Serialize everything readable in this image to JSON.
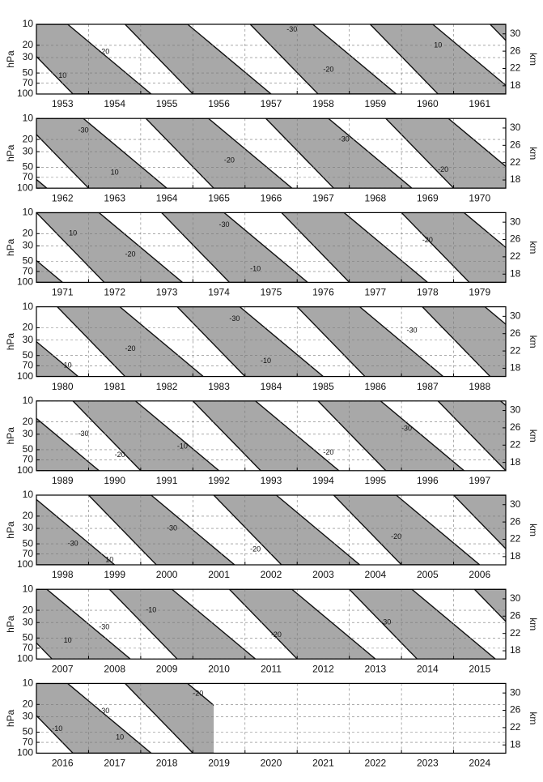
{
  "chart_data": [
    {
      "type": "contour",
      "ylabel": "hPa",
      "y2label": "km",
      "log": true,
      "grid": true,
      "color": "#a8a8a8",
      "xlim": [
        1953,
        1962
      ],
      "categories": [
        "1953",
        "1954",
        "1955",
        "1956",
        "1957",
        "1958",
        "1959",
        "1960",
        "1961"
      ],
      "ylim": [
        100,
        10
      ],
      "yticks": [
        10,
        20,
        30,
        50,
        70,
        100
      ],
      "y2lim": [
        16.1,
        32.2
      ],
      "y2ticks": [
        30,
        26,
        22,
        18
      ],
      "westerly": [
        [
          1952.4,
          1953.6,
          1953.7,
          1955.2
        ],
        [
          1954.7,
          1955.9,
          1956.0,
          1957.5
        ],
        [
          1957.1,
          1958.3,
          1958.4,
          1959.9
        ],
        [
          1959.4,
          1960.6,
          1960.7,
          1962.2
        ],
        [
          1961.7,
          1962.9,
          1963.0,
          1964.5
        ]
      ],
      "contour_labels": [
        {
          "x": 1954.3,
          "y": 25,
          "text": -20
        },
        {
          "x": 1953.5,
          "y": 55,
          "text": 10
        },
        {
          "x": 1957.9,
          "y": 12,
          "text": -30
        },
        {
          "x": 1958.6,
          "y": 45,
          "text": -20
        },
        {
          "x": 1960.7,
          "y": 20,
          "text": 10
        }
      ]
    },
    {
      "type": "contour",
      "ylabel": "hPa",
      "y2label": "km",
      "log": true,
      "grid": true,
      "color": "#a8a8a8",
      "xlim": [
        1962,
        1971
      ],
      "categories": [
        "1962",
        "1963",
        "1964",
        "1965",
        "1966",
        "1967",
        "1968",
        "1969",
        "1970"
      ],
      "ylim": [
        100,
        10
      ],
      "yticks": [
        10,
        20,
        30,
        50,
        70,
        100
      ],
      "y2lim": [
        16.1,
        32.2
      ],
      "y2ticks": [
        30,
        26,
        22,
        18
      ],
      "westerly": [
        [
          1959.4,
          1960.6,
          1960.7,
          1962.2
        ],
        [
          1961.7,
          1962.9,
          1963.0,
          1964.5
        ],
        [
          1964.1,
          1965.3,
          1965.4,
          1966.9
        ],
        [
          1966.4,
          1967.6,
          1967.7,
          1969.2
        ],
        [
          1968.7,
          1969.9,
          1970.0,
          1971.5
        ]
      ],
      "contour_labels": [
        {
          "x": 1962.9,
          "y": 15,
          "text": -30
        },
        {
          "x": 1963.5,
          "y": 60,
          "text": 10
        },
        {
          "x": 1965.7,
          "y": 40,
          "text": -20
        },
        {
          "x": 1967.9,
          "y": 20,
          "text": -30
        },
        {
          "x": 1969.8,
          "y": 55,
          "text": -20
        }
      ]
    },
    {
      "type": "contour",
      "ylabel": "hPa",
      "y2label": "km",
      "log": true,
      "grid": true,
      "color": "#a8a8a8",
      "xlim": [
        1971,
        1980
      ],
      "categories": [
        "1971",
        "1972",
        "1973",
        "1974",
        "1975",
        "1976",
        "1977",
        "1978",
        "1979"
      ],
      "ylim": [
        100,
        10
      ],
      "yticks": [
        10,
        20,
        30,
        50,
        70,
        100
      ],
      "y2lim": [
        16.1,
        32.2
      ],
      "y2ticks": [
        30,
        26,
        22,
        18
      ],
      "westerly": [
        [
          1968.7,
          1969.9,
          1970.0,
          1971.5
        ],
        [
          1971.0,
          1972.2,
          1972.3,
          1973.8
        ],
        [
          1973.4,
          1974.6,
          1974.7,
          1976.2
        ],
        [
          1975.7,
          1976.9,
          1977.0,
          1978.5
        ],
        [
          1978.0,
          1979.2,
          1979.3,
          1980.8
        ]
      ],
      "contour_labels": [
        {
          "x": 1971.7,
          "y": 20,
          "text": 10
        },
        {
          "x": 1972.8,
          "y": 40,
          "text": -20
        },
        {
          "x": 1974.6,
          "y": 15,
          "text": -30
        },
        {
          "x": 1975.2,
          "y": 65,
          "text": -10
        },
        {
          "x": 1978.5,
          "y": 25,
          "text": -20
        }
      ]
    },
    {
      "type": "contour",
      "ylabel": "hPa",
      "y2label": "km",
      "log": true,
      "grid": true,
      "color": "#a8a8a8",
      "xlim": [
        1980,
        1989
      ],
      "categories": [
        "1980",
        "1981",
        "1982",
        "1983",
        "1984",
        "1985",
        "1986",
        "1987",
        "1988"
      ],
      "ylim": [
        100,
        10
      ],
      "yticks": [
        10,
        20,
        30,
        50,
        70,
        100
      ],
      "y2lim": [
        16.1,
        32.2
      ],
      "y2ticks": [
        30,
        26,
        22,
        18
      ],
      "westerly": [
        [
          1978.0,
          1979.2,
          1979.3,
          1980.8
        ],
        [
          1980.4,
          1981.6,
          1981.7,
          1983.2
        ],
        [
          1982.7,
          1983.9,
          1984.0,
          1985.5
        ],
        [
          1985.0,
          1986.2,
          1986.3,
          1987.8
        ],
        [
          1987.4,
          1988.6,
          1988.7,
          1990.2
        ]
      ],
      "contour_labels": [
        {
          "x": 1980.6,
          "y": 70,
          "text": 10
        },
        {
          "x": 1981.8,
          "y": 40,
          "text": -20
        },
        {
          "x": 1983.8,
          "y": 15,
          "text": -30
        },
        {
          "x": 1984.4,
          "y": 60,
          "text": -10
        },
        {
          "x": 1987.2,
          "y": 22,
          "text": -30
        }
      ]
    },
    {
      "type": "contour",
      "ylabel": "hPa",
      "y2label": "km",
      "log": true,
      "grid": true,
      "color": "#a8a8a8",
      "xlim": [
        1989,
        1998
      ],
      "categories": [
        "1989",
        "1990",
        "1991",
        "1992",
        "1993",
        "1994",
        "1995",
        "1996",
        "1997"
      ],
      "ylim": [
        100,
        10
      ],
      "yticks": [
        10,
        20,
        30,
        50,
        70,
        100
      ],
      "y2lim": [
        16.1,
        32.2
      ],
      "y2ticks": [
        30,
        26,
        22,
        18
      ],
      "westerly": [
        [
          1987.4,
          1988.6,
          1988.7,
          1990.2
        ],
        [
          1989.7,
          1990.9,
          1991.0,
          1992.5
        ],
        [
          1992.0,
          1993.2,
          1993.3,
          1994.8
        ],
        [
          1994.4,
          1995.6,
          1995.7,
          1997.2
        ],
        [
          1996.7,
          1997.9,
          1998.0,
          1999.5
        ]
      ],
      "contour_labels": [
        {
          "x": 1989.9,
          "y": 30,
          "text": -30
        },
        {
          "x": 1990.6,
          "y": 60,
          "text": -20
        },
        {
          "x": 1991.8,
          "y": 45,
          "text": -10
        },
        {
          "x": 1994.6,
          "y": 55,
          "text": -20
        },
        {
          "x": 1996.1,
          "y": 25,
          "text": -30
        }
      ]
    },
    {
      "type": "contour",
      "ylabel": "hPa",
      "y2label": "km",
      "log": true,
      "grid": true,
      "color": "#a8a8a8",
      "xlim": [
        1998,
        2007
      ],
      "categories": [
        "1998",
        "1999",
        "2000",
        "2001",
        "2002",
        "2003",
        "2004",
        "2005",
        "2006"
      ],
      "ylim": [
        100,
        10
      ],
      "yticks": [
        10,
        20,
        30,
        50,
        70,
        100
      ],
      "y2lim": [
        16.1,
        32.2
      ],
      "y2ticks": [
        30,
        26,
        22,
        18
      ],
      "westerly": [
        [
          1996.7,
          1997.9,
          1998.0,
          1999.5
        ],
        [
          1999.0,
          2000.2,
          2000.3,
          2001.8
        ],
        [
          2001.4,
          2002.6,
          2002.7,
          2004.2
        ],
        [
          2003.7,
          2004.9,
          2005.0,
          2006.5
        ],
        [
          2006.0,
          2007.2,
          2007.3,
          2008.8
        ]
      ],
      "contour_labels": [
        {
          "x": 1998.7,
          "y": 50,
          "text": -30
        },
        {
          "x": 1999.4,
          "y": 85,
          "text": 10
        },
        {
          "x": 2000.6,
          "y": 30,
          "text": -30
        },
        {
          "x": 2002.2,
          "y": 60,
          "text": -20
        },
        {
          "x": 2004.9,
          "y": 40,
          "text": -20
        }
      ]
    },
    {
      "type": "contour",
      "ylabel": "hPa",
      "y2label": "km",
      "log": true,
      "grid": true,
      "color": "#a8a8a8",
      "xlim": [
        2007,
        2016
      ],
      "categories": [
        "2007",
        "2008",
        "2009",
        "2010",
        "2011",
        "2012",
        "2013",
        "2014",
        "2015"
      ],
      "ylim": [
        100,
        10
      ],
      "yticks": [
        10,
        20,
        30,
        50,
        70,
        100
      ],
      "y2lim": [
        16.1,
        32.2
      ],
      "y2ticks": [
        30,
        26,
        22,
        18
      ],
      "westerly": [
        [
          2006.0,
          2007.2,
          2007.3,
          2008.8
        ],
        [
          2008.4,
          2009.6,
          2009.7,
          2011.2
        ],
        [
          2010.7,
          2011.9,
          2012.0,
          2013.5
        ],
        [
          2013.0,
          2014.2,
          2014.3,
          2015.8
        ],
        [
          2015.4,
          2016.6,
          2016.7,
          2018.2
        ]
      ],
      "contour_labels": [
        {
          "x": 2007.6,
          "y": 55,
          "text": 10
        },
        {
          "x": 2008.3,
          "y": 35,
          "text": -30
        },
        {
          "x": 2009.2,
          "y": 20,
          "text": -10
        },
        {
          "x": 2011.6,
          "y": 45,
          "text": -20
        },
        {
          "x": 2013.7,
          "y": 30,
          "text": -30
        }
      ]
    },
    {
      "type": "contour",
      "ylabel": "hPa",
      "y2label": "km",
      "log": true,
      "grid": true,
      "color": "#a8a8a8",
      "xlim": [
        2016,
        2025
      ],
      "categories": [
        "2016",
        "2017",
        "2018",
        "2019",
        "2020",
        "2021",
        "2022",
        "2023",
        "2024"
      ],
      "ylim": [
        100,
        10
      ],
      "yticks": [
        10,
        20,
        30,
        50,
        70,
        100
      ],
      "y2lim": [
        16.1,
        32.2
      ],
      "y2ticks": [
        30,
        26,
        22,
        18
      ],
      "data_end": 2019.4,
      "westerly": [
        [
          2015.4,
          2016.6,
          2016.7,
          2018.2
        ],
        [
          2017.7,
          2018.9,
          2019.0,
          2020.5
        ]
      ],
      "contour_labels": [
        {
          "x": 2016.4,
          "y": 45,
          "text": -10
        },
        {
          "x": 2017.3,
          "y": 25,
          "text": -30
        },
        {
          "x": 2017.6,
          "y": 60,
          "text": 10
        },
        {
          "x": 2019.1,
          "y": 14,
          "text": -20
        }
      ]
    }
  ]
}
